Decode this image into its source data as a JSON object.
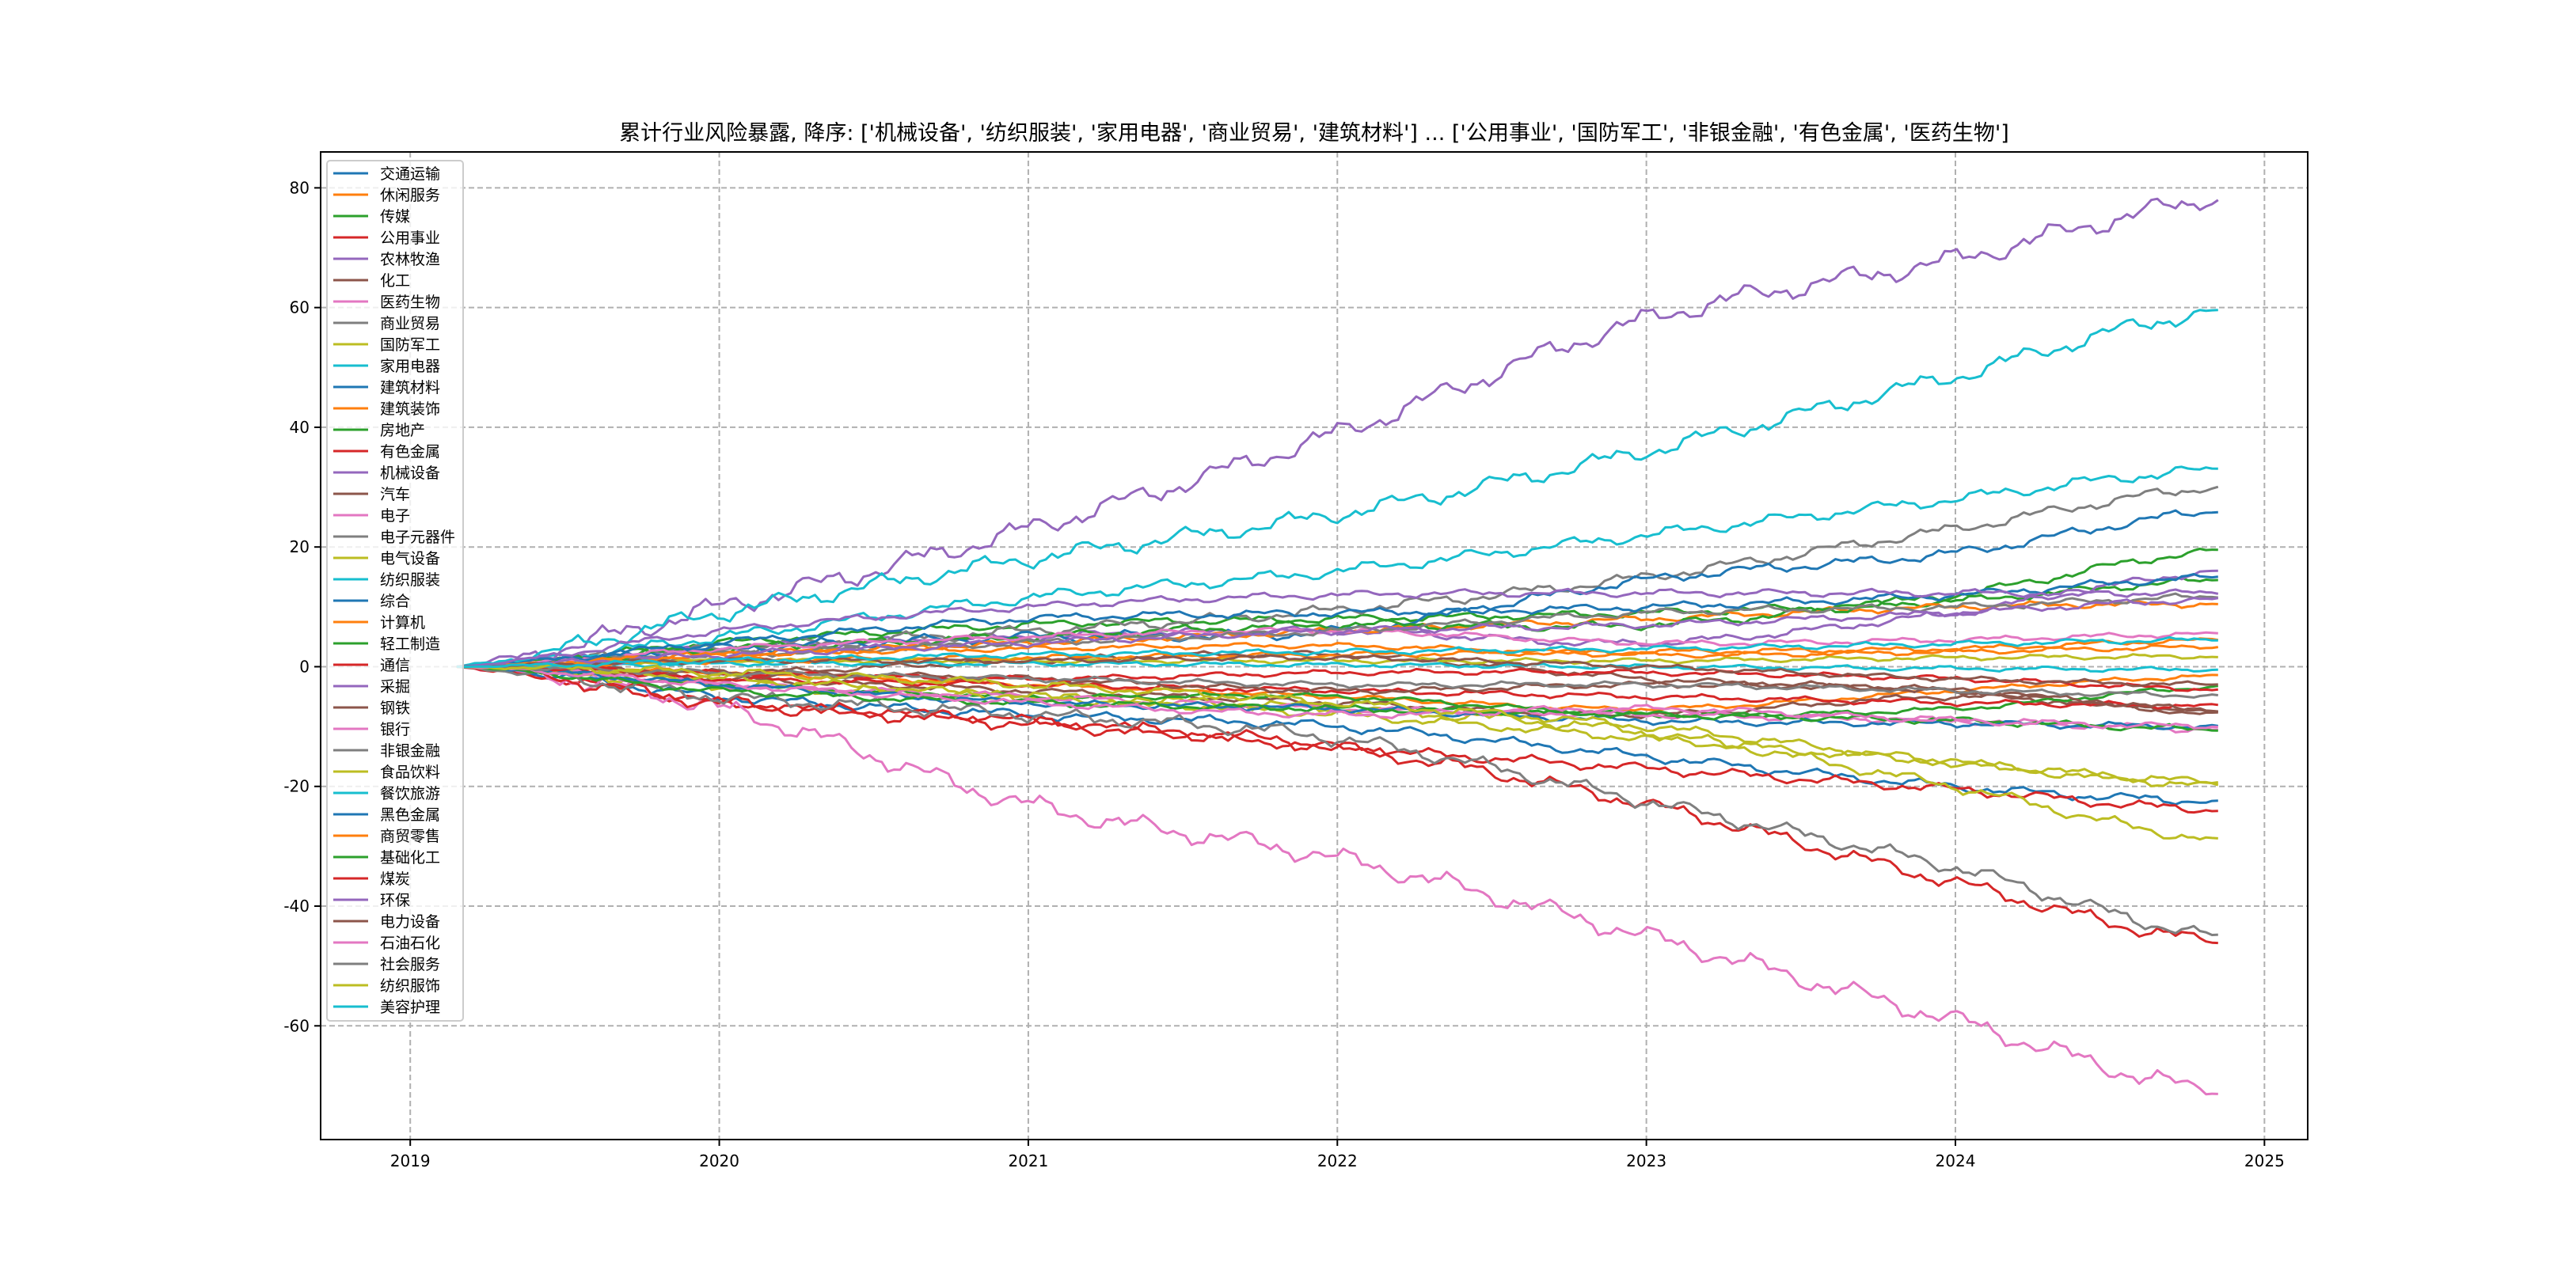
{
  "chart_data": {
    "type": "line",
    "title": "累计行业风险暴露, 降序: ['机械设备', '纺织服装', '家用电器', '商业贸易', '建筑材料'] ... ['公用事业', '国防军工', '非银金融', '有色金属', '医药生物']",
    "xlabel": "",
    "ylabel": "",
    "xlim": [
      2018.71,
      2025.14
    ],
    "ylim": [
      -79,
      86
    ],
    "xticks": [
      2019,
      2020,
      2021,
      2022,
      2023,
      2024,
      2025
    ],
    "yticks": [
      -60,
      -40,
      -20,
      0,
      20,
      40,
      60,
      80
    ],
    "grid": true,
    "legend_position": "upper-left",
    "x": [
      2019.15,
      2020,
      2021,
      2022,
      2023,
      2024,
      2024.85
    ],
    "colors": [
      "#1f77b4",
      "#ff7f0e",
      "#2ca02c",
      "#d62728",
      "#9467bd",
      "#8c564b",
      "#e377c2",
      "#7f7f7f",
      "#bcbd22",
      "#17becf"
    ],
    "series": [
      {
        "name": "交通运输",
        "values": [
          0,
          -5,
          -8,
          -10,
          -15,
          -20,
          -22.5
        ]
      },
      {
        "name": "休闲服务",
        "values": [
          0,
          -1,
          -3,
          -5,
          -7,
          -4,
          -1.5
        ]
      },
      {
        "name": "传媒",
        "values": [
          0,
          4,
          7,
          8,
          9,
          11,
          14.5
        ]
      },
      {
        "name": "公用事业",
        "values": [
          0,
          -6,
          -9,
          -13.5,
          -17,
          -20.5,
          -24
        ]
      },
      {
        "name": "农林牧渔",
        "values": [
          0,
          3,
          5,
          6,
          4,
          9,
          16
        ]
      },
      {
        "name": "化工",
        "values": [
          0,
          -2,
          -4,
          -6,
          -8,
          -5,
          -7.5
        ]
      },
      {
        "name": "医药生物",
        "values": [
          0,
          -7,
          -23,
          -32,
          -45,
          -59,
          -71
        ]
      },
      {
        "name": "商业贸易",
        "values": [
          0,
          3,
          6,
          9.5,
          15,
          23,
          30
        ]
      },
      {
        "name": "国防军工",
        "values": [
          0,
          -3,
          -5,
          -7,
          -11,
          -20,
          -29
        ]
      },
      {
        "name": "家用电器",
        "values": [
          0,
          5,
          11.5,
          16,
          22,
          28,
          33
        ]
      },
      {
        "name": "建筑材料",
        "values": [
          0,
          3,
          5,
          6,
          14.5,
          19,
          26
        ]
      },
      {
        "name": "建筑装饰",
        "values": [
          0,
          2,
          4,
          6,
          8,
          10,
          10.5
        ]
      },
      {
        "name": "房地产",
        "values": [
          0,
          3,
          5,
          7,
          7,
          12,
          19.5
        ]
      },
      {
        "name": "有色金属",
        "values": [
          0,
          -6,
          -9.5,
          -13.5,
          -23,
          -36,
          -46
        ]
      },
      {
        "name": "机械设备",
        "values": [
          0,
          10,
          23,
          39,
          58,
          68,
          78
        ]
      },
      {
        "name": "汽车",
        "values": [
          0,
          -1,
          1,
          2,
          -2,
          -4,
          -7.8
        ]
      },
      {
        "name": "电子",
        "values": [
          0,
          3,
          5,
          6,
          4,
          4.5,
          5.5
        ]
      },
      {
        "name": "电子元器件",
        "values": [
          0,
          2,
          4,
          6,
          9,
          10,
          11.7
        ]
      },
      {
        "name": "电气设备",
        "values": [
          0,
          1,
          1,
          1,
          1,
          1.5,
          1.7
        ]
      },
      {
        "name": "纺织服装",
        "values": [
          0,
          9,
          18,
          25.5,
          36,
          48.5,
          59.5
        ]
      },
      {
        "name": "综合",
        "values": [
          0,
          4,
          8,
          9,
          10,
          12,
          15
        ]
      },
      {
        "name": "计算机",
        "values": [
          0,
          2,
          3,
          3.5,
          2,
          2.5,
          3.3
        ]
      },
      {
        "name": "轻工制造",
        "values": [
          0,
          -3,
          -5,
          -5,
          -8,
          -7,
          -3.3
        ]
      },
      {
        "name": "通信",
        "values": [
          0,
          -2,
          -3,
          -4,
          -5,
          -6,
          -6.5
        ]
      },
      {
        "name": "采掘",
        "values": [
          0,
          6,
          10,
          12,
          12.3,
          12.3,
          12.3
        ]
      },
      {
        "name": "钢铁",
        "values": [
          0,
          -1,
          -2,
          -4,
          -3,
          -4,
          -7.3
        ]
      },
      {
        "name": "银行",
        "values": [
          0,
          -3,
          -5,
          -7,
          -8,
          -9,
          -10.5
        ]
      },
      {
        "name": "非银金融",
        "values": [
          0,
          -5,
          -8,
          -12,
          -22.5,
          -33.5,
          -45
        ]
      },
      {
        "name": "食品饮料",
        "values": [
          0,
          -2,
          -5,
          -8,
          -12,
          -16,
          -19.3
        ]
      },
      {
        "name": "餐饮旅游",
        "values": [
          0,
          0.5,
          0.5,
          0.3,
          0,
          -0.3,
          -0.5
        ]
      },
      {
        "name": "黑色金属",
        "values": [
          0,
          -3,
          -6,
          -7,
          -9,
          -9.5,
          -10
        ]
      },
      {
        "name": "商贸零售",
        "values": [
          0,
          1,
          1.5,
          2,
          2.5,
          3,
          4.5
        ]
      },
      {
        "name": "基础化工",
        "values": [
          0,
          -4,
          -6,
          -7,
          -8,
          -9,
          -10.5
        ]
      },
      {
        "name": "煤炭",
        "values": [
          0,
          -1,
          -2,
          -1,
          -1,
          -2,
          -3.8
        ]
      },
      {
        "name": "环保",
        "values": [
          0,
          2,
          4,
          6,
          7,
          9,
          11.3
        ]
      },
      {
        "name": "电力设备",
        "values": [
          0,
          1,
          1,
          1.5,
          0,
          -2,
          -3
        ]
      },
      {
        "name": "石油石化",
        "values": [
          0,
          -3,
          -6,
          -8,
          -7,
          -9,
          -10
        ]
      },
      {
        "name": "社会服务",
        "values": [
          0,
          -1,
          -2,
          -3,
          -3,
          -4,
          -4.8
        ]
      },
      {
        "name": "纺织服饰",
        "values": [
          0,
          -1,
          -3,
          -6,
          -10,
          -16,
          -19.8
        ]
      },
      {
        "name": "美容护理",
        "values": [
          0,
          1,
          2,
          2.5,
          3,
          3.8,
          4.5
        ]
      }
    ]
  }
}
